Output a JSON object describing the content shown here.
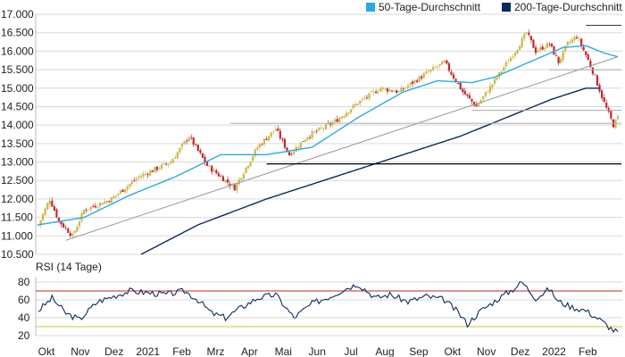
{
  "chart_data": [
    {
      "type": "candlestick",
      "legend": [
        {
          "name": "50-Tage-Durchschnitt",
          "color": "#29abe2"
        },
        {
          "name": "200-Tage-Durchschnitt",
          "color": "#0b2a5b"
        }
      ],
      "ylim": [
        10500,
        17000
      ],
      "y_ticks": [
        "17.000",
        "16.500",
        "16.000",
        "15.500",
        "15.000",
        "14.500",
        "14.000",
        "13.500",
        "13.000",
        "12.500",
        "12.000",
        "11.500",
        "11.000",
        "10.500"
      ],
      "x_tick_labels": [
        "Okt",
        "Nov",
        "Dez",
        "2021",
        "Feb",
        "Mrz",
        "Apr",
        "Mai",
        "Jun",
        "Jul",
        "Aug",
        "Sep",
        "Okt",
        "Nov",
        "Dez",
        "2022",
        "Feb"
      ],
      "colors": {
        "up": "#c9b84a",
        "down": "#c0282d",
        "grid": "#d9d9d9"
      },
      "price_anchors": [
        {
          "t": 0,
          "v": 11300
        },
        {
          "t": 5,
          "v": 12000
        },
        {
          "t": 9,
          "v": 11400
        },
        {
          "t": 15,
          "v": 11000
        },
        {
          "t": 20,
          "v": 11700
        },
        {
          "t": 32,
          "v": 12000
        },
        {
          "t": 44,
          "v": 12600
        },
        {
          "t": 58,
          "v": 13000
        },
        {
          "t": 66,
          "v": 13700
        },
        {
          "t": 74,
          "v": 12900
        },
        {
          "t": 82,
          "v": 12500
        },
        {
          "t": 86,
          "v": 12300
        },
        {
          "t": 96,
          "v": 13400
        },
        {
          "t": 104,
          "v": 13900
        },
        {
          "t": 110,
          "v": 13200
        },
        {
          "t": 118,
          "v": 13700
        },
        {
          "t": 130,
          "v": 14100
        },
        {
          "t": 140,
          "v": 14600
        },
        {
          "t": 150,
          "v": 15000
        },
        {
          "t": 158,
          "v": 14900
        },
        {
          "t": 170,
          "v": 15400
        },
        {
          "t": 178,
          "v": 15700
        },
        {
          "t": 186,
          "v": 14900
        },
        {
          "t": 192,
          "v": 14500
        },
        {
          "t": 200,
          "v": 15200
        },
        {
          "t": 210,
          "v": 16100
        },
        {
          "t": 214,
          "v": 16500
        },
        {
          "t": 218,
          "v": 16000
        },
        {
          "t": 224,
          "v": 16200
        },
        {
          "t": 228,
          "v": 15700
        },
        {
          "t": 232,
          "v": 16200
        },
        {
          "t": 236,
          "v": 16400
        },
        {
          "t": 240,
          "v": 15900
        },
        {
          "t": 244,
          "v": 15300
        },
        {
          "t": 248,
          "v": 14600
        },
        {
          "t": 250,
          "v": 14300
        },
        {
          "t": 252,
          "v": 14000
        },
        {
          "t": 254,
          "v": 14200
        }
      ],
      "ma50_anchors": [
        {
          "t": 0,
          "v": 11300
        },
        {
          "t": 20,
          "v": 11500
        },
        {
          "t": 40,
          "v": 12100
        },
        {
          "t": 60,
          "v": 12600
        },
        {
          "t": 80,
          "v": 13200
        },
        {
          "t": 100,
          "v": 13200
        },
        {
          "t": 120,
          "v": 13400
        },
        {
          "t": 140,
          "v": 14200
        },
        {
          "t": 160,
          "v": 14900
        },
        {
          "t": 175,
          "v": 15200
        },
        {
          "t": 190,
          "v": 15150
        },
        {
          "t": 200,
          "v": 15300
        },
        {
          "t": 215,
          "v": 15700
        },
        {
          "t": 230,
          "v": 16100
        },
        {
          "t": 240,
          "v": 16150
        },
        {
          "t": 248,
          "v": 15950
        },
        {
          "t": 254,
          "v": 15850
        }
      ],
      "ma200_anchors": [
        {
          "t": 45,
          "v": 10500
        },
        {
          "t": 70,
          "v": 11300
        },
        {
          "t": 100,
          "v": 12000
        },
        {
          "t": 130,
          "v": 12600
        },
        {
          "t": 160,
          "v": 13200
        },
        {
          "t": 185,
          "v": 13700
        },
        {
          "t": 205,
          "v": 14200
        },
        {
          "t": 225,
          "v": 14700
        },
        {
          "t": 240,
          "v": 15000
        },
        {
          "t": 246,
          "v": 15000
        }
      ],
      "trendline": {
        "t0": 12,
        "v0": 10880,
        "t1": 254,
        "v1": 15850
      },
      "support_levels": [
        {
          "t0": 100,
          "t1": 254,
          "v": 12950,
          "color": "#000000"
        },
        {
          "t0": 240,
          "t1": 254,
          "v": 16700,
          "color": "#333333"
        },
        {
          "t0": 224,
          "t1": 254,
          "v": 15500,
          "color": "#aaaaaa"
        },
        {
          "t0": 190,
          "t1": 254,
          "v": 14400,
          "color": "#aaaaaa"
        },
        {
          "t0": 84,
          "t1": 254,
          "v": 14050,
          "color": "#aaaaaa"
        }
      ]
    },
    {
      "type": "line",
      "title": "RSI (14 Tage)",
      "ylim": [
        20,
        85
      ],
      "y_ticks": [
        "80",
        "60",
        "40",
        "20"
      ],
      "overbought": 70,
      "oversold": 30,
      "series": [
        {
          "color": "#0b2a5b"
        }
      ],
      "rsi_anchors": [
        {
          "t": 0,
          "v": 48
        },
        {
          "t": 6,
          "v": 62
        },
        {
          "t": 12,
          "v": 45
        },
        {
          "t": 18,
          "v": 38
        },
        {
          "t": 26,
          "v": 58
        },
        {
          "t": 34,
          "v": 65
        },
        {
          "t": 40,
          "v": 70
        },
        {
          "t": 48,
          "v": 68
        },
        {
          "t": 56,
          "v": 66
        },
        {
          "t": 64,
          "v": 70
        },
        {
          "t": 70,
          "v": 60
        },
        {
          "t": 76,
          "v": 45
        },
        {
          "t": 82,
          "v": 40
        },
        {
          "t": 88,
          "v": 50
        },
        {
          "t": 96,
          "v": 62
        },
        {
          "t": 104,
          "v": 66
        },
        {
          "t": 112,
          "v": 40
        },
        {
          "t": 120,
          "v": 56
        },
        {
          "t": 128,
          "v": 64
        },
        {
          "t": 134,
          "v": 72
        },
        {
          "t": 140,
          "v": 78
        },
        {
          "t": 148,
          "v": 62
        },
        {
          "t": 154,
          "v": 66
        },
        {
          "t": 162,
          "v": 58
        },
        {
          "t": 170,
          "v": 64
        },
        {
          "t": 178,
          "v": 60
        },
        {
          "t": 184,
          "v": 46
        },
        {
          "t": 188,
          "v": 33
        },
        {
          "t": 194,
          "v": 48
        },
        {
          "t": 202,
          "v": 62
        },
        {
          "t": 208,
          "v": 72
        },
        {
          "t": 212,
          "v": 80
        },
        {
          "t": 218,
          "v": 62
        },
        {
          "t": 224,
          "v": 72
        },
        {
          "t": 228,
          "v": 58
        },
        {
          "t": 234,
          "v": 52
        },
        {
          "t": 240,
          "v": 48
        },
        {
          "t": 246,
          "v": 38
        },
        {
          "t": 250,
          "v": 30
        },
        {
          "t": 252,
          "v": 26
        },
        {
          "t": 254,
          "v": 24
        }
      ]
    }
  ]
}
